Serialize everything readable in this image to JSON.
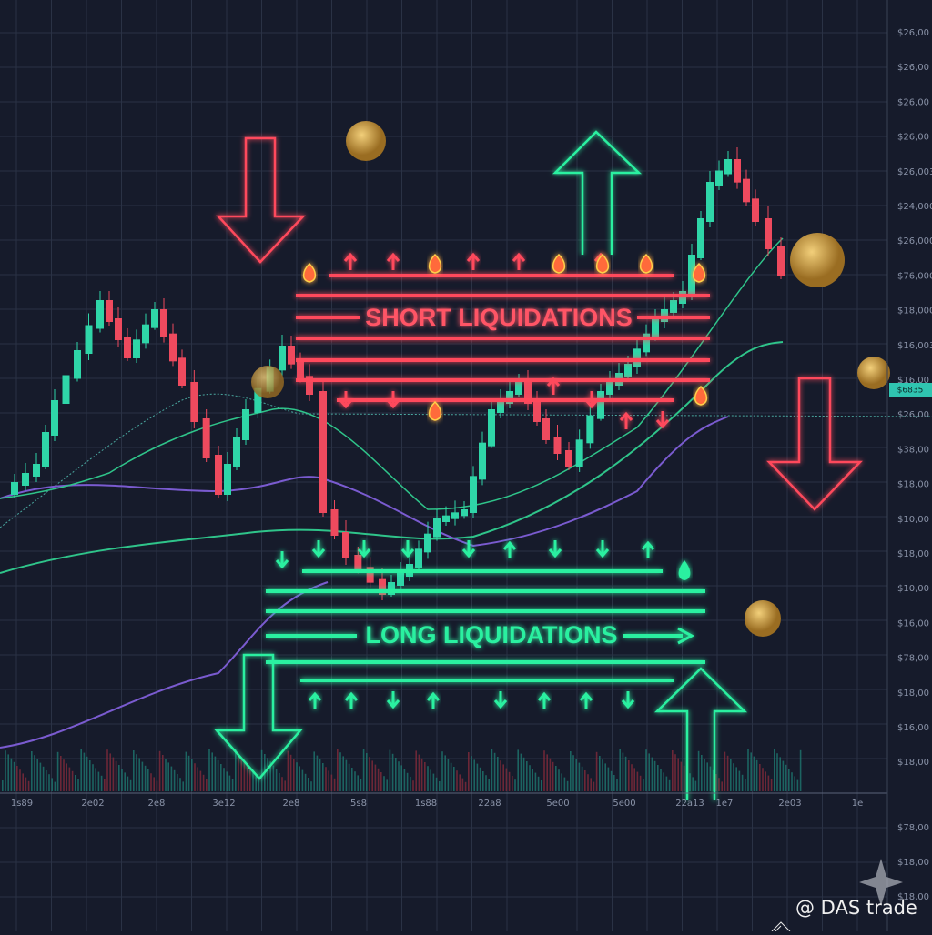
{
  "short_label": "SHORT LIQUIDATIONS",
  "long_label": "LONG LIQUIDATIONS",
  "watermark": "@ DAS trade",
  "price_tag": "$6835",
  "right_axis": [
    "$26,00",
    "$26,00",
    "$26,00",
    "$26,00",
    "$26,003",
    "$24,000",
    "$26,000",
    "$76,000",
    "$18,000",
    "$16,003",
    "$16,00",
    "$26,00",
    "$38,00",
    "$18,00",
    "$10,00",
    "$18,00",
    "$10,00",
    "$16,00",
    "$78,00",
    "$18,00",
    "$16,00",
    "$18,00"
  ],
  "right_axis_lower": [
    "$78,00",
    "$18,00",
    "$18,00"
  ],
  "bottom_axis": [
    "1s89",
    "2e02",
    "2e8",
    "3e12",
    "2e8",
    "5s8",
    "1s88",
    "22a8",
    "5e00",
    "5e00",
    "22a13",
    "1e7",
    "2e03",
    "1e"
  ]
}
